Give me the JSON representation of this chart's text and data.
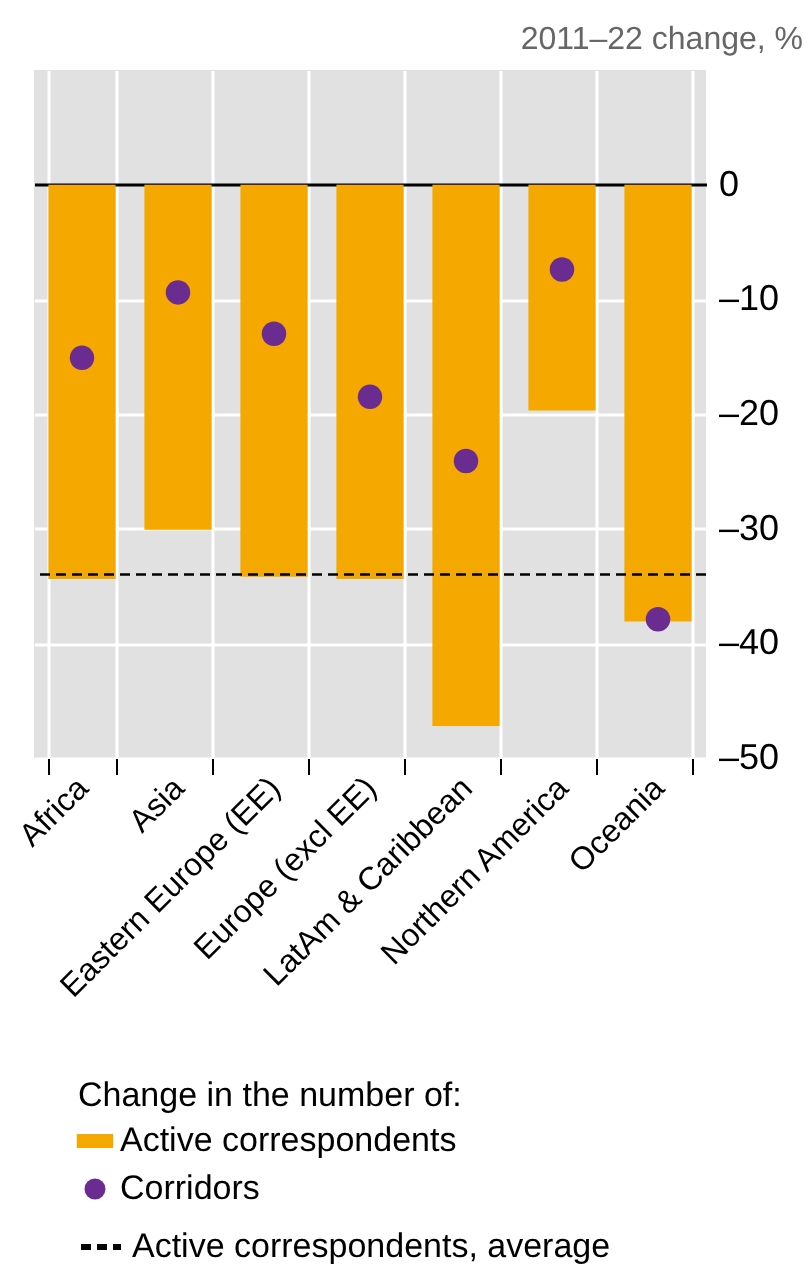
{
  "chart_data": {
    "type": "bar",
    "ylabel": "2011–22 change, %",
    "legend_title": "Change in the number of:",
    "categories": [
      "Africa",
      "Asia",
      "Eastern Europe (EE)",
      "Europe (excl EE)",
      "LatAm & Caribbean",
      "Northern America",
      "Oceania"
    ],
    "series": [
      {
        "name": "Active correspondents",
        "color": "#f5a800",
        "values": [
          -34.4,
          -30.1,
          -34.2,
          -34.4,
          -47.2,
          -19.7,
          -38.1
        ]
      },
      {
        "name": "Corridors",
        "type": "scatter",
        "color": "#6a2c91",
        "values": [
          -15.1,
          -9.4,
          -13.0,
          -18.5,
          -24.1,
          -7.4,
          -37.9
        ]
      }
    ],
    "ref_lines": [
      {
        "axis": "y",
        "value": -34,
        "label": "Active correspondents, average",
        "line_style": "dashed",
        "color": "#000000"
      }
    ],
    "ylim": [
      -50,
      10
    ],
    "yticks": [
      {
        "value": 0,
        "label": "0"
      },
      {
        "value": -10,
        "label": "–10"
      },
      {
        "value": -20,
        "label": "–20"
      },
      {
        "value": -30,
        "label": "–30"
      },
      {
        "value": -40,
        "label": "–40"
      },
      {
        "value": -50,
        "label": "–50"
      }
    ],
    "grid": true,
    "legend": "bottom",
    "marker": "circle"
  }
}
